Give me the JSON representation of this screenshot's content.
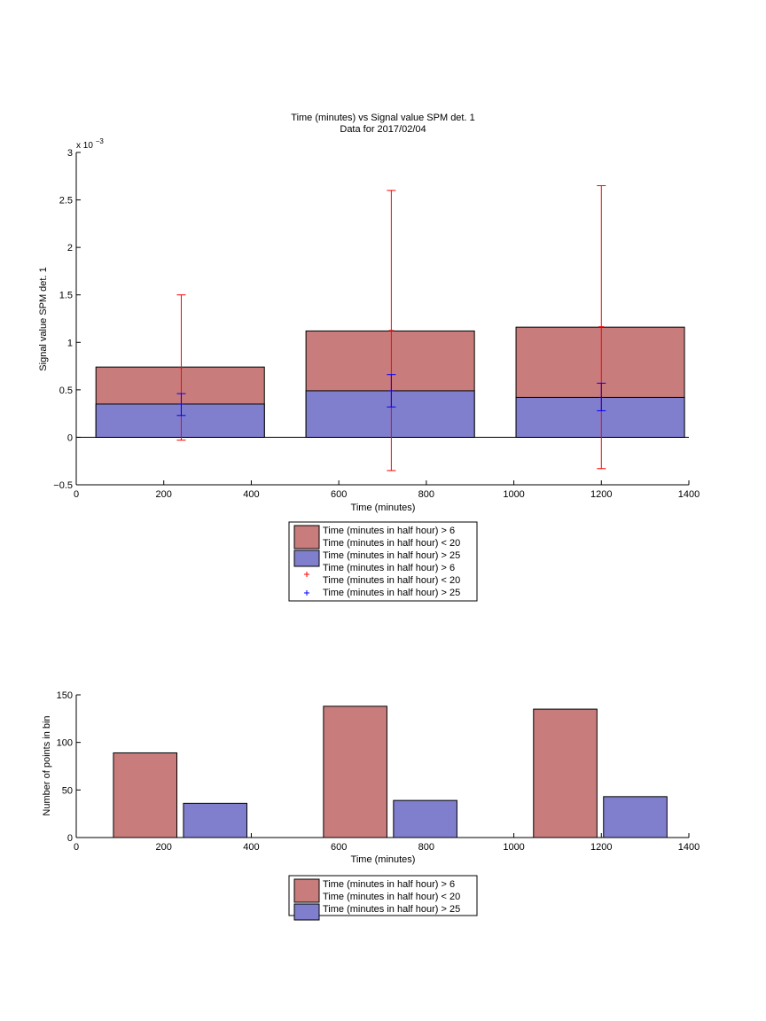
{
  "chart_data": [
    {
      "type": "bar",
      "title": "Time (minutes) vs Signal value SPM det. 1",
      "subtitle": "Data for 2017/02/04",
      "xlabel": "Time (minutes)",
      "ylabel": "Signal value SPM det. 1",
      "y_multiplier_label": "x 10",
      "y_multiplier_exponent": "−3",
      "xlim": [
        0,
        1400
      ],
      "ylim": [
        -0.5,
        3
      ],
      "xticks": [
        0,
        200,
        400,
        600,
        800,
        1000,
        1200,
        1400
      ],
      "yticks": [
        -0.5,
        0,
        0.5,
        1,
        1.5,
        2,
        2.5,
        3
      ],
      "ytick_labels": [
        "−0.5",
        "0",
        "0.5",
        "1",
        "1.5",
        "2",
        "2.5",
        "3"
      ],
      "grid": false,
      "legend_position": "below-center",
      "bars": [
        {
          "x0": 45,
          "x1": 430,
          "series_a": 0.74,
          "series_b": 0.35
        },
        {
          "x0": 525,
          "x1": 910,
          "series_a": 1.12,
          "series_b": 0.49
        },
        {
          "x0": 1005,
          "x1": 1390,
          "series_a": 1.16,
          "series_b": 0.42
        }
      ],
      "errorbars": [
        {
          "x": 240,
          "series": "a",
          "center": 0.735,
          "low": -0.03,
          "high": 1.5
        },
        {
          "x": 720,
          "series": "a",
          "center": 1.125,
          "low": -0.35,
          "high": 2.6
        },
        {
          "x": 1200,
          "series": "a",
          "center": 1.165,
          "low": -0.33,
          "high": 2.65
        },
        {
          "x": 240,
          "series": "b",
          "center": 0.35,
          "low": 0.23,
          "high": 0.46
        },
        {
          "x": 720,
          "series": "b",
          "center": 0.49,
          "low": 0.32,
          "high": 0.66
        },
        {
          "x": 1200,
          "series": "b",
          "center": 0.42,
          "low": 0.28,
          "high": 0.57
        }
      ],
      "legend": [
        {
          "kind": "bar",
          "color": "#c97c7c",
          "lines": [
            "Time (minutes in half hour) > 6",
            "Time (minutes in half hour) < 20"
          ]
        },
        {
          "kind": "bar",
          "color": "#7f7fce",
          "lines": [
            "Time (minutes in half hour) > 25"
          ]
        },
        {
          "kind": "marker",
          "color": "#ff0000",
          "lines": [
            "Time (minutes in half hour) > 6",
            "Time (minutes in half hour) < 20"
          ]
        },
        {
          "kind": "marker",
          "color": "#0000ff",
          "lines": [
            "Time (minutes in half hour) > 25"
          ]
        }
      ]
    },
    {
      "type": "bar",
      "xlabel": "Time (minutes)",
      "ylabel": "Number of points in bin",
      "xlim": [
        0,
        1400
      ],
      "ylim": [
        0,
        150
      ],
      "xticks": [
        0,
        200,
        400,
        600,
        800,
        1000,
        1200,
        1400
      ],
      "yticks": [
        0,
        50,
        100,
        150
      ],
      "grid": false,
      "legend_position": "below-center",
      "bars": [
        {
          "x0": 85,
          "x1": 230,
          "value": 89,
          "series": "a"
        },
        {
          "x0": 245,
          "x1": 390,
          "value": 36,
          "series": "b"
        },
        {
          "x0": 565,
          "x1": 710,
          "value": 138,
          "series": "a"
        },
        {
          "x0": 725,
          "x1": 870,
          "value": 39,
          "series": "b"
        },
        {
          "x0": 1045,
          "x1": 1190,
          "value": 135,
          "series": "a"
        },
        {
          "x0": 1205,
          "x1": 1350,
          "value": 43,
          "series": "b"
        }
      ],
      "legend": [
        {
          "kind": "bar",
          "color": "#c97c7c",
          "lines": [
            "Time (minutes in half hour) > 6",
            "Time (minutes in half hour) < 20"
          ]
        },
        {
          "kind": "bar",
          "color": "#7f7fce",
          "lines": [
            "Time (minutes in half hour) > 25"
          ]
        }
      ]
    }
  ],
  "colors": {
    "series_a_bar": "#c97c7c",
    "series_b_bar": "#7f7fce",
    "series_a_err": "#ff0000",
    "series_b_err": "#0000ff"
  }
}
